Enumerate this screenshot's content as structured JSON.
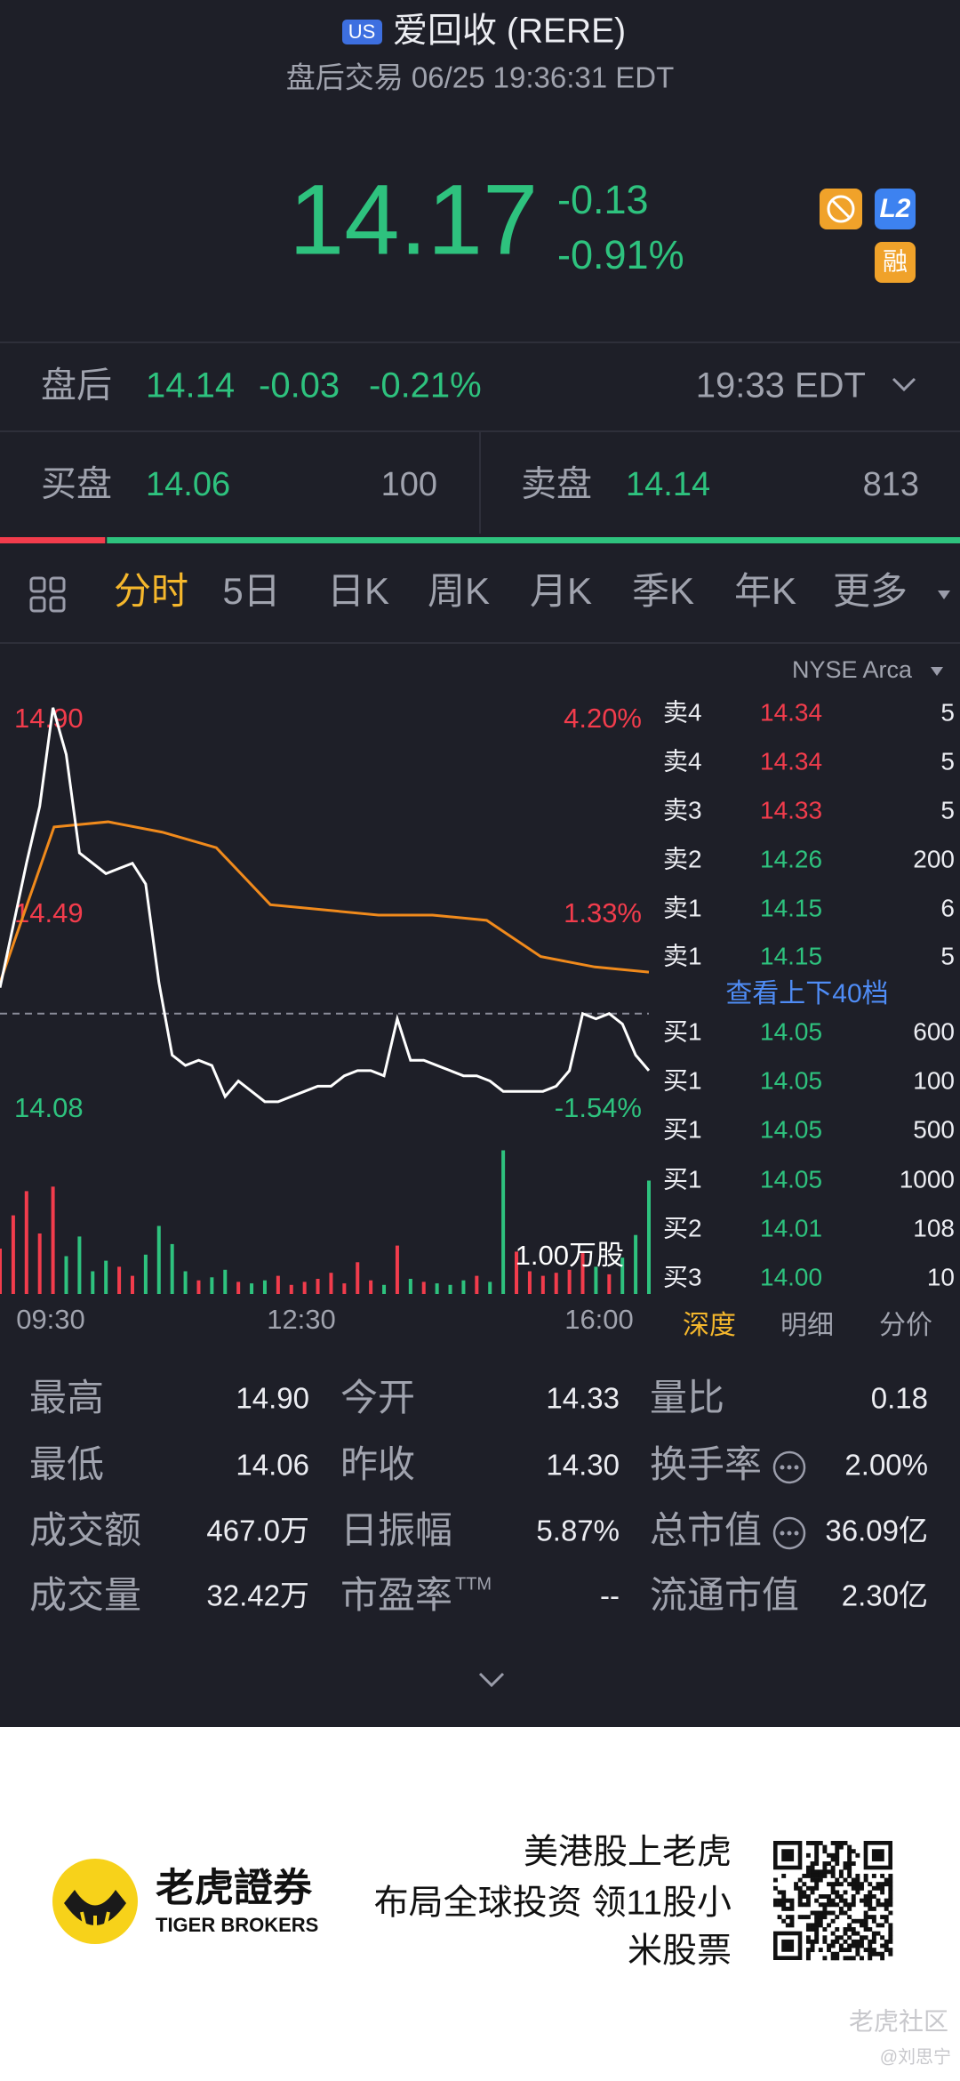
{
  "header": {
    "market_badge": "US",
    "title": "爱回收 (RERE)",
    "subtitle": "盘后交易 06/25 19:36:31 EDT",
    "price": "14.17",
    "change": "-0.13",
    "change_pct": "-0.91%",
    "icon_l2": "L2",
    "icon_margin": "融"
  },
  "after_hours": {
    "label": "盘后",
    "price": "14.14",
    "change": "-0.03",
    "change_pct": "-0.21%",
    "time": "19:33 EDT"
  },
  "bid": {
    "label": "买盘",
    "price": "14.06",
    "size": 100
  },
  "ask": {
    "label": "卖盘",
    "price": "14.14",
    "size": 813
  },
  "tabs": [
    "分时",
    "5日",
    "日K",
    "周K",
    "月K",
    "季K",
    "年K",
    "更多"
  ],
  "intraday": {
    "ylim": [
      14.08,
      14.9
    ],
    "yticks": [
      {
        "value": 14.9,
        "label": "14.90"
      },
      {
        "value": 14.49,
        "label": "14.49"
      },
      {
        "value": 14.08,
        "label": "14.08"
      }
    ],
    "y2ticks": [
      {
        "value": 4.2,
        "label": "4.20%"
      },
      {
        "value": 1.33,
        "label": "1.33%"
      },
      {
        "value": -1.54,
        "label": "-1.54%"
      }
    ],
    "prev_close": 14.3,
    "xticks": [
      "09:30",
      "12:30",
      "16:00"
    ],
    "price": [
      14.35,
      14.47,
      14.59,
      14.7,
      14.89,
      14.8,
      14.61,
      14.59,
      14.57,
      14.58,
      14.59,
      14.55,
      14.36,
      14.22,
      14.2,
      14.21,
      14.2,
      14.14,
      14.17,
      14.15,
      14.13,
      14.13,
      14.14,
      14.15,
      14.16,
      14.16,
      14.18,
      14.19,
      14.19,
      14.18,
      14.29,
      14.21,
      14.21,
      14.2,
      14.19,
      14.18,
      14.18,
      14.17,
      14.15,
      14.15,
      14.15,
      14.15,
      14.16,
      14.19,
      14.3,
      14.29,
      14.3,
      14.28,
      14.22,
      14.19
    ],
    "avg": [
      14.36,
      14.66,
      14.67,
      14.65,
      14.62,
      14.51,
      14.5,
      14.49,
      14.49,
      14.48,
      14.41,
      14.39,
      14.38
    ],
    "volume": [
      3000,
      5200,
      6800,
      4000,
      7100,
      2500,
      3800,
      1500,
      2200,
      1800,
      1200,
      2600,
      4500,
      3300,
      1500,
      900,
      1100,
      1600,
      800,
      700,
      900,
      1200,
      600,
      800,
      1000,
      1400,
      700,
      2100,
      900,
      600,
      3200,
      1000,
      800,
      700,
      600,
      900,
      1200,
      800,
      9500,
      2800,
      1500,
      1200,
      1400,
      1600,
      2700,
      1800,
      1300,
      2400,
      3900,
      7500
    ],
    "volume_scale": {
      "value": 10000,
      "label": "1.00万股"
    }
  },
  "order_book": {
    "exchange": "NYSE Arca",
    "asks": [
      [
        "卖4",
        "14.34",
        "5"
      ],
      [
        "卖4",
        "14.34",
        "5"
      ],
      [
        "卖3",
        "14.33",
        "5"
      ],
      [
        "卖2",
        "14.26",
        "200"
      ],
      [
        "卖1",
        "14.15",
        "6"
      ],
      [
        "卖1",
        "14.15",
        "5"
      ]
    ],
    "more": "查看上下40档",
    "bids": [
      [
        "买1",
        "14.05",
        "600"
      ],
      [
        "买1",
        "14.05",
        "100"
      ],
      [
        "买1",
        "14.05",
        "500"
      ],
      [
        "买1",
        "14.05",
        "1000"
      ],
      [
        "买2",
        "14.01",
        "108"
      ],
      [
        "买3",
        "14.00",
        "10"
      ]
    ],
    "tabs": [
      "深度",
      "明细",
      "分价"
    ]
  },
  "stats": [
    [
      "最高",
      "14.90"
    ],
    [
      "今开",
      "14.33"
    ],
    [
      "量比",
      "0.18"
    ],
    [
      "最低",
      "14.06"
    ],
    [
      "昨收",
      "14.30"
    ],
    [
      "换手率",
      "2.00%"
    ],
    [
      "成交额",
      "467.0万"
    ],
    [
      "日振幅",
      "5.87%"
    ],
    [
      "总市值",
      "36.09亿"
    ],
    [
      "成交量",
      "32.42万"
    ],
    [
      "市盈率",
      "--"
    ],
    [
      "流通市值",
      "2.30亿"
    ]
  ],
  "stats_superscript": "TTM",
  "footer": {
    "brand": "老虎證券",
    "brand_en": "TIGER BROKERS",
    "slogan": [
      "美港股上老虎",
      "布局全球投资 领11股小",
      "米股票"
    ],
    "watermark": "老虎社区",
    "author": "@刘思宁"
  }
}
